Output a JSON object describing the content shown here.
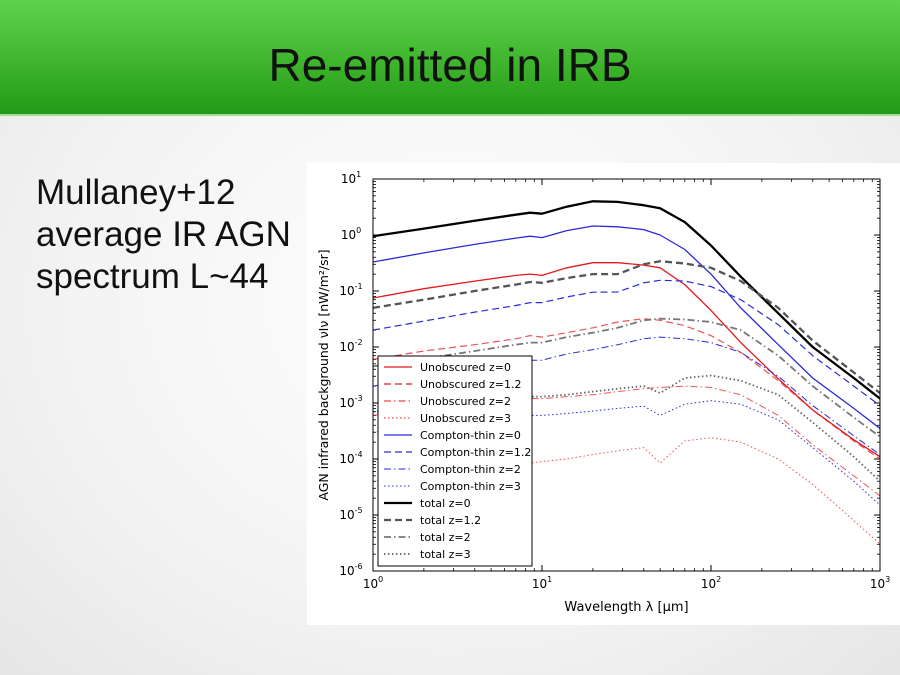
{
  "slide": {
    "title": "Re-emitted in IRB",
    "body_lines": [
      "Mullaney+12",
      "average IR AGN",
      "spectrum L~44"
    ]
  },
  "chart_data": {
    "type": "line",
    "xlabel": "Wavelength λ [μm]",
    "ylabel": "AGN infrared background νIν [nW/m²/sr]",
    "xscale": "log",
    "yscale": "log",
    "xlim": [
      1,
      1000
    ],
    "ylim": [
      1e-06,
      10
    ],
    "x_ticks": [
      {
        "value": 1,
        "base": "10",
        "exp": "0"
      },
      {
        "value": 10,
        "base": "10",
        "exp": "1"
      },
      {
        "value": 100,
        "base": "10",
        "exp": "2"
      },
      {
        "value": 1000,
        "base": "10",
        "exp": "3"
      }
    ],
    "y_ticks": [
      {
        "value": 10,
        "base": "10",
        "exp": "1"
      },
      {
        "value": 1,
        "base": "10",
        "exp": "0"
      },
      {
        "value": 0.1,
        "base": "10",
        "exp": "-1"
      },
      {
        "value": 0.01,
        "base": "10",
        "exp": "-2"
      },
      {
        "value": 0.001,
        "base": "10",
        "exp": "-3"
      },
      {
        "value": 0.0001,
        "base": "10",
        "exp": "-4"
      },
      {
        "value": 1e-05,
        "base": "10",
        "exp": "-5"
      },
      {
        "value": 1e-06,
        "base": "10",
        "exp": "-6"
      }
    ],
    "legend_position": "lower-left",
    "x": [
      1,
      2,
      4,
      7,
      8.5,
      10,
      14,
      20,
      28,
      40,
      50,
      70,
      100,
      150,
      250,
      400,
      700,
      1000
    ],
    "series": [
      {
        "name": "Unobscured z=0",
        "color": "#e41a1c",
        "style": "solid",
        "width": 1.3,
        "values": [
          0.075,
          0.11,
          0.15,
          0.19,
          0.2,
          0.19,
          0.26,
          0.32,
          0.32,
          0.29,
          0.26,
          0.13,
          0.045,
          0.012,
          0.0027,
          0.00075,
          0.00022,
          0.00011
        ]
      },
      {
        "name": "Unobscured z=1.2",
        "color": "#e41a1c",
        "style": "dashed",
        "width": 1.2,
        "values": [
          0.006,
          0.0085,
          0.011,
          0.014,
          0.016,
          0.015,
          0.018,
          0.022,
          0.028,
          0.032,
          0.03,
          0.024,
          0.016,
          0.008,
          0.0025,
          0.00075,
          0.00021,
          0.0001
        ]
      },
      {
        "name": "Unobscured z=2",
        "color": "#e41a1c",
        "style": "dashdot",
        "width": 1.0,
        "values": [
          0.0006,
          0.00075,
          0.0009,
          0.0011,
          0.0012,
          0.0012,
          0.0013,
          0.0014,
          0.0016,
          0.0018,
          0.0019,
          0.002,
          0.0019,
          0.0014,
          0.0006,
          0.00018,
          5e-05,
          2.2e-05
        ]
      },
      {
        "name": "Unobscured z=3",
        "color": "#e41a1c",
        "style": "dotted",
        "width": 1.0,
        "values": [
          4e-05,
          5.5e-05,
          7e-05,
          8e-05,
          8.5e-05,
          9e-05,
          0.0001,
          0.00012,
          0.00014,
          0.00016,
          8.5e-05,
          0.00021,
          0.00024,
          0.0002,
          0.0001,
          3.5e-05,
          8e-06,
          3e-06
        ]
      },
      {
        "name": "Compton-thin z=0",
        "color": "#2b2bd6",
        "style": "solid",
        "width": 1.3,
        "values": [
          0.33,
          0.48,
          0.68,
          0.88,
          0.95,
          0.9,
          1.2,
          1.45,
          1.4,
          1.25,
          1.0,
          0.55,
          0.2,
          0.05,
          0.011,
          0.0028,
          0.0008,
          0.00035
        ]
      },
      {
        "name": "Compton-thin z=1.2",
        "color": "#2b2bd6",
        "style": "dashed",
        "width": 1.2,
        "values": [
          0.02,
          0.029,
          0.042,
          0.055,
          0.062,
          0.062,
          0.078,
          0.095,
          0.096,
          0.14,
          0.155,
          0.15,
          0.12,
          0.07,
          0.025,
          0.007,
          0.002,
          0.0009
        ]
      },
      {
        "name": "Compton-thin z=2",
        "color": "#2b2bd6",
        "style": "dashdot",
        "width": 1.0,
        "values": [
          0.002,
          0.0028,
          0.004,
          0.0052,
          0.0058,
          0.0058,
          0.0075,
          0.009,
          0.011,
          0.014,
          0.015,
          0.014,
          0.012,
          0.008,
          0.003,
          0.0009,
          0.00026,
          0.00012
        ]
      },
      {
        "name": "Compton-thin z=3",
        "color": "#2b2bd6",
        "style": "dotted",
        "width": 1.0,
        "values": [
          0.0003,
          0.00038,
          0.00048,
          0.00056,
          0.0006,
          0.0006,
          0.00065,
          0.00072,
          0.0008,
          0.00088,
          0.0006,
          0.00095,
          0.0011,
          0.00095,
          0.0005,
          0.00016,
          4e-05,
          1.5e-05
        ]
      },
      {
        "name": "total z=0",
        "color": "#000000",
        "style": "solid",
        "width": 2.3,
        "values": [
          0.95,
          1.3,
          1.8,
          2.3,
          2.5,
          2.4,
          3.2,
          4.0,
          3.9,
          3.4,
          3.0,
          1.7,
          0.65,
          0.18,
          0.04,
          0.01,
          0.0028,
          0.0012
        ]
      },
      {
        "name": "total z=1.2",
        "color": "#555555",
        "style": "dashed",
        "width": 2.3,
        "values": [
          0.05,
          0.07,
          0.1,
          0.13,
          0.145,
          0.14,
          0.17,
          0.2,
          0.2,
          0.3,
          0.34,
          0.31,
          0.26,
          0.15,
          0.05,
          0.013,
          0.0035,
          0.0015
        ]
      },
      {
        "name": "total z=2",
        "color": "#777777",
        "style": "dashdot",
        "width": 1.8,
        "values": [
          0.0045,
          0.0062,
          0.0085,
          0.011,
          0.012,
          0.012,
          0.015,
          0.018,
          0.022,
          0.03,
          0.032,
          0.031,
          0.028,
          0.02,
          0.007,
          0.002,
          0.00055,
          0.00025
        ]
      },
      {
        "name": "total z=3",
        "color": "#666666",
        "style": "dotted",
        "width": 1.8,
        "values": [
          0.0007,
          0.00085,
          0.001,
          0.0012,
          0.0013,
          0.0013,
          0.0014,
          0.0016,
          0.0018,
          0.002,
          0.0015,
          0.0028,
          0.0031,
          0.0025,
          0.0014,
          0.00045,
          0.00011,
          4e-05
        ]
      }
    ]
  }
}
